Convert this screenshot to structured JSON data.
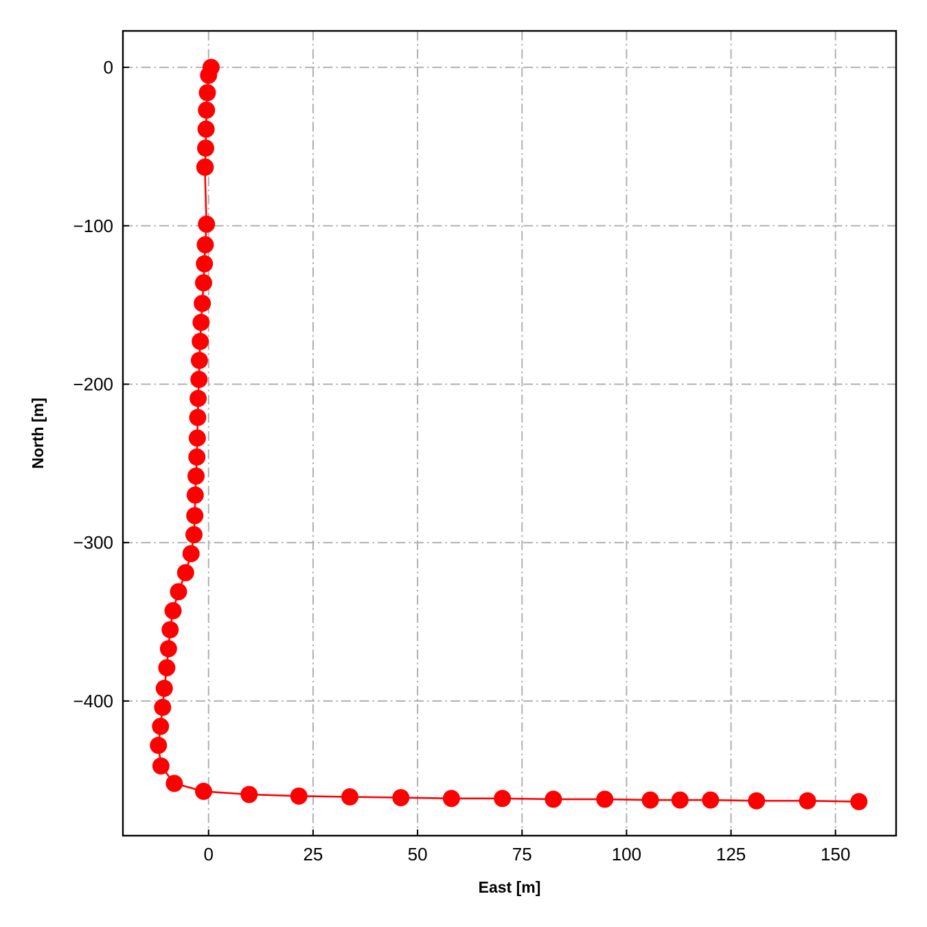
{
  "chart_data": {
    "type": "line",
    "title": "",
    "xlabel": "East [m]",
    "ylabel": "North [m]",
    "xlim": [
      -20.5,
      164.5
    ],
    "ylim": [
      -485,
      23
    ],
    "xticks": [
      0,
      25,
      50,
      75,
      100,
      125,
      150
    ],
    "yticks": [
      0,
      -100,
      -200,
      -300,
      -400
    ],
    "grid": true,
    "legend": "none",
    "marker": "circle",
    "color": "#ff0000",
    "series": [
      {
        "x": [
          0.6,
          0.0,
          -0.3,
          -0.5,
          -0.6,
          -0.7,
          -0.8,
          -0.9,
          -0.5,
          -0.8,
          -1.0,
          -1.2,
          -1.5,
          -1.8,
          -2.0,
          -2.2,
          -2.3,
          -2.5,
          -2.6,
          -2.7,
          -2.8,
          -3.0,
          -3.2,
          -3.3,
          -3.5,
          -4.2,
          -5.5,
          -7.2,
          -8.5,
          -9.2,
          -9.6,
          -10.0,
          -10.6,
          -11.0,
          -11.5,
          -12.0,
          -11.4,
          -8.2,
          -1.2,
          9.7,
          21.6,
          33.8,
          46.0,
          58.1,
          70.3,
          82.5,
          94.8,
          105.7,
          112.8,
          120.1,
          131.1,
          143.3,
          155.6
        ],
        "y": [
          0,
          -5,
          -16,
          -27,
          -39,
          -51,
          -63,
          -63,
          -99,
          -112,
          -124,
          -136,
          -149,
          -161,
          -173,
          -185,
          -197,
          -209,
          -221,
          -234,
          -246,
          -258,
          -270,
          -283,
          -295,
          -307,
          -319,
          -331,
          -343,
          -355,
          -367,
          -379,
          -392,
          -404,
          -416,
          -428,
          -441,
          -452,
          -457,
          -459,
          -460,
          -460.5,
          -461,
          -461.5,
          -461.5,
          -462,
          -462,
          -462.5,
          -462.5,
          -462.5,
          -463,
          -463,
          -463.5
        ]
      }
    ]
  }
}
